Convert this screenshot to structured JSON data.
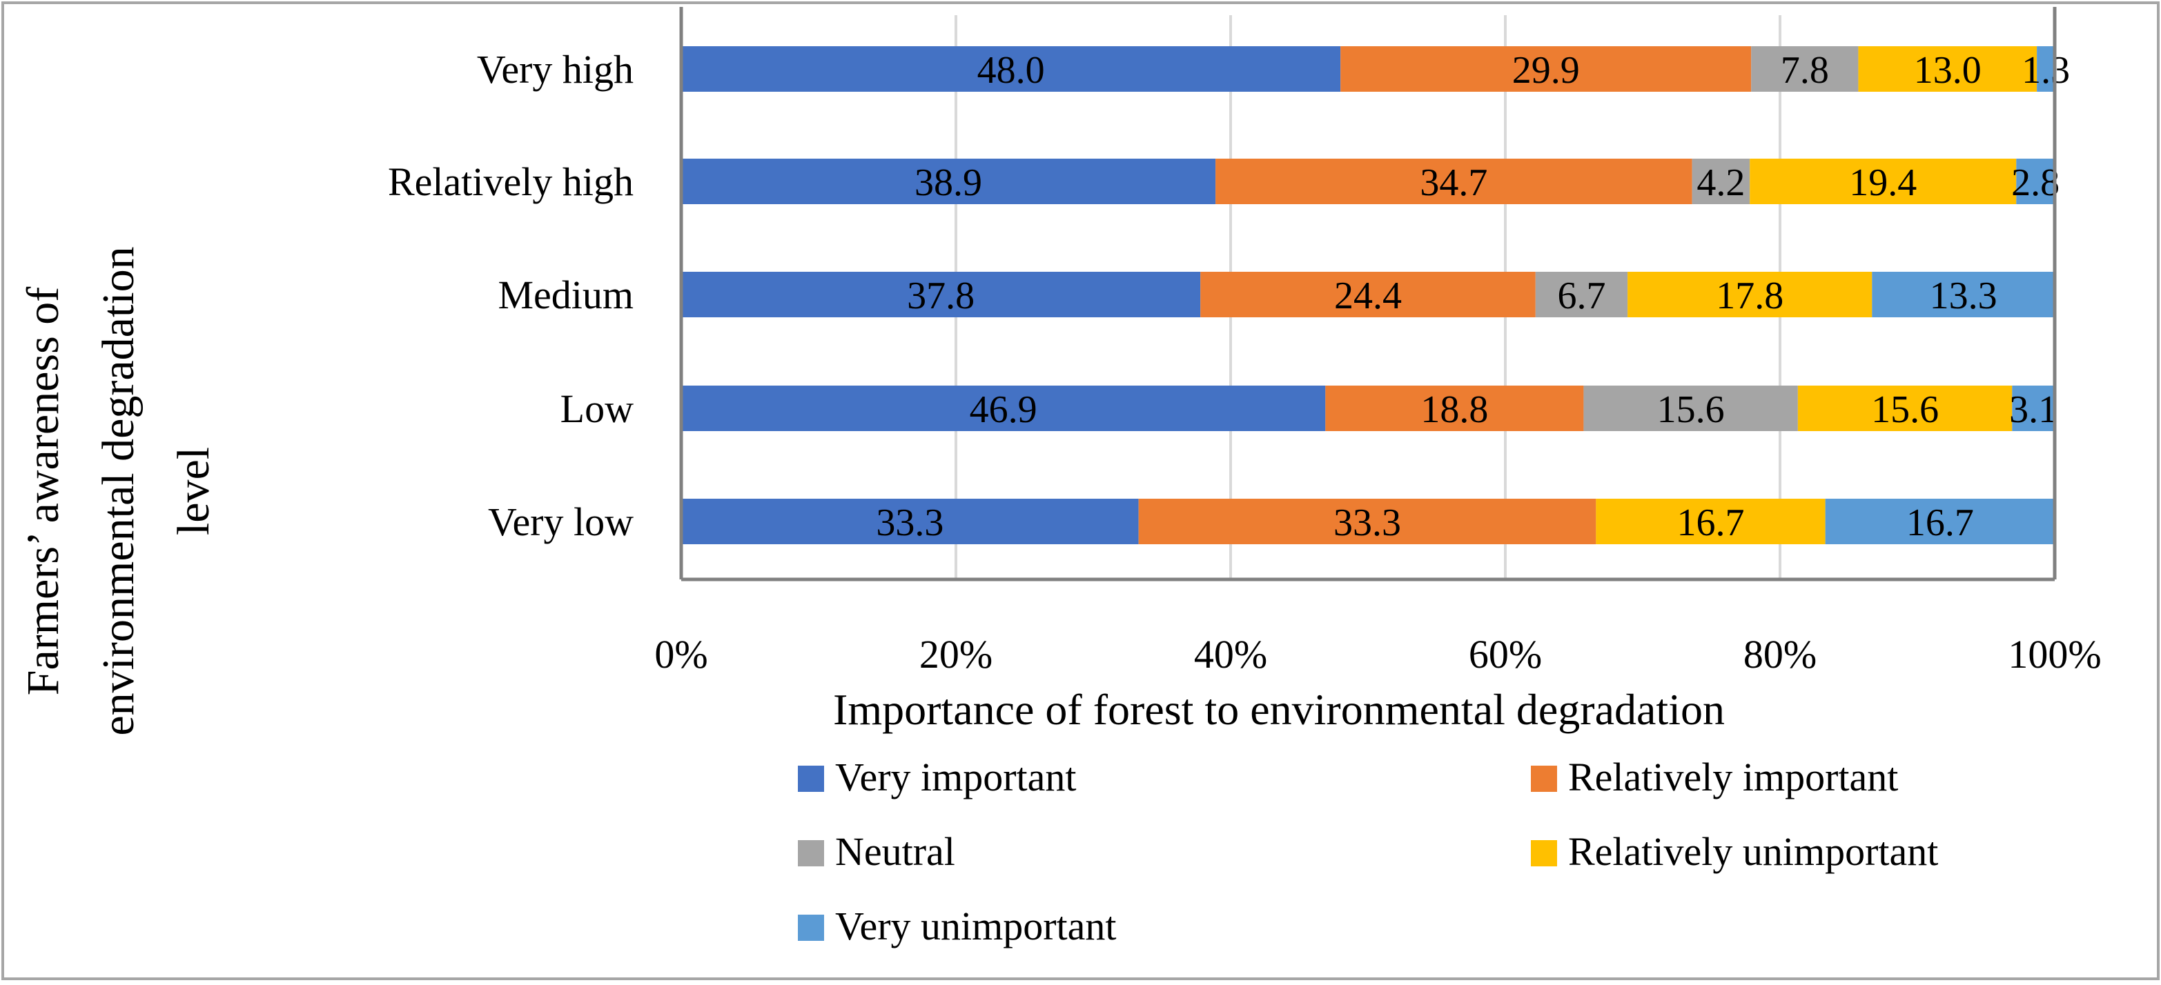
{
  "chart_data": {
    "type": "bar",
    "orientation": "horizontal",
    "stacked": "percent",
    "title": "",
    "xlabel": "Importance of forest to environmental degradation",
    "ylabel": "Farmers’ awareness of environmental degradation level",
    "ylabel_lines": [
      "Farmers’ awareness of",
      "environmental degradation",
      "level"
    ],
    "xlim": [
      0,
      100
    ],
    "x_ticks": [
      0,
      20,
      40,
      60,
      80,
      100
    ],
    "x_tick_labels": [
      "0%",
      "20%",
      "40%",
      "60%",
      "80%",
      "100%"
    ],
    "grid": true,
    "legend_position": "bottom",
    "categories": [
      "Very high",
      "Relatively high",
      "Medium",
      "Low",
      "Very low"
    ],
    "series": [
      {
        "name": "Very important",
        "color": "#4472C4",
        "values": [
          48.0,
          38.9,
          37.8,
          46.9,
          33.3
        ],
        "labels": [
          "48.0",
          "38.9",
          "37.8",
          "46.9",
          "33.3"
        ]
      },
      {
        "name": "Relatively important",
        "color": "#ED7D31",
        "values": [
          29.9,
          34.7,
          24.4,
          18.8,
          33.3
        ],
        "labels": [
          "29.9",
          "34.7",
          "24.4",
          "18.8",
          "33.3"
        ]
      },
      {
        "name": "Neutral",
        "color": "#A5A5A5",
        "values": [
          7.8,
          4.2,
          6.7,
          15.6,
          0
        ],
        "labels": [
          "7.8",
          "4.2",
          "6.7",
          "15.6",
          ""
        ]
      },
      {
        "name": "Relatively unimportant",
        "color": "#FFC000",
        "values": [
          13.0,
          19.4,
          17.8,
          15.6,
          16.7
        ],
        "labels": [
          "13.0",
          "19.4",
          "17.8",
          "15.6",
          "16.7"
        ]
      },
      {
        "name": "Very unimportant",
        "color": "#5B9BD5",
        "values": [
          1.3,
          2.8,
          13.3,
          3.1,
          16.7
        ],
        "labels": [
          "1.3",
          "2.8",
          "13.3",
          "3.1",
          "16.7"
        ]
      }
    ]
  }
}
